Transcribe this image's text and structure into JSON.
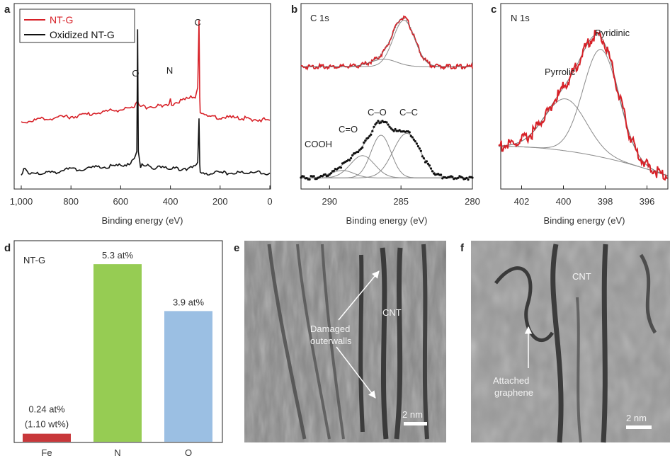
{
  "colors": {
    "red": "#d72027",
    "black": "#111111",
    "green": "#96cc53",
    "blue": "#9bbfe3",
    "fe": "#c8373a"
  },
  "panel_labels": {
    "a": "a",
    "b": "b",
    "c": "c",
    "d": "d",
    "e": "e",
    "f": "f"
  },
  "chart_data": [
    {
      "id": "a",
      "type": "line",
      "xlabel": "Binding energy (eV)",
      "ylabel": "",
      "xlim": [
        1000,
        0
      ],
      "xticks": [
        1000,
        800,
        600,
        400,
        200,
        0
      ],
      "xtick_labels": [
        "1,000",
        "800",
        "600",
        "400",
        "200",
        "0"
      ],
      "legend": [
        "NT-G",
        "Oxidized NT-G"
      ],
      "series": [
        {
          "name": "NT-G",
          "color": "#d72027",
          "x": [
            1000,
            900,
            800,
            700,
            600,
            550,
            535,
            532,
            529,
            520,
            450,
            405,
            400,
            395,
            300,
            290,
            285,
            282,
            280,
            250,
            100,
            0
          ],
          "y": [
            0.36,
            0.38,
            0.39,
            0.41,
            0.43,
            0.44,
            0.47,
            0.48,
            0.46,
            0.44,
            0.45,
            0.46,
            0.49,
            0.46,
            0.5,
            0.55,
            0.92,
            0.5,
            0.4,
            0.39,
            0.38,
            0.37
          ]
        },
        {
          "name": "Oxidized NT-G",
          "color": "#111111",
          "x": [
            1000,
            985,
            970,
            900,
            800,
            700,
            600,
            560,
            545,
            535,
            532,
            529,
            520,
            450,
            400,
            300,
            290,
            285,
            282,
            280,
            250,
            100,
            0
          ],
          "y": [
            0.08,
            0.11,
            0.07,
            0.08,
            0.1,
            0.11,
            0.12,
            0.14,
            0.17,
            0.2,
            0.87,
            0.2,
            0.12,
            0.11,
            0.1,
            0.11,
            0.14,
            0.38,
            0.13,
            0.09,
            0.08,
            0.08,
            0.08
          ]
        }
      ],
      "annotations": [
        {
          "text": "O",
          "x": 540
        },
        {
          "text": "N",
          "x": 403
        },
        {
          "text": "C",
          "x": 290
        }
      ]
    },
    {
      "id": "b",
      "type": "line",
      "title": "C 1s",
      "xlabel": "Binding energy (eV)",
      "xlim": [
        292,
        280
      ],
      "xticks": [
        290,
        285,
        280
      ],
      "xtick_labels": [
        "290",
        "285",
        "280"
      ],
      "top_spectrum": {
        "baseline": 0.66,
        "components": [
          {
            "center": 284.8,
            "amp": 0.25,
            "sigma": 0.75
          },
          {
            "center": 286.2,
            "amp": 0.04,
            "sigma": 0.9
          }
        ]
      },
      "bottom_spectrum": {
        "baseline": 0.06,
        "components": [
          {
            "name": "C-C",
            "center": 284.6,
            "amp": 0.24,
            "sigma": 0.95
          },
          {
            "name": "C-O",
            "center": 286.4,
            "amp": 0.23,
            "sigma": 0.7
          },
          {
            "name": "C=O",
            "center": 287.7,
            "amp": 0.12,
            "sigma": 0.85
          },
          {
            "name": "COOH",
            "center": 289.1,
            "amp": 0.04,
            "sigma": 0.8
          }
        ]
      },
      "annotations": [
        "COOH",
        "C=O",
        "C–O",
        "C–C"
      ]
    },
    {
      "id": "c",
      "type": "line",
      "title": "N 1s",
      "xlabel": "Binding energy (eV)",
      "xlim": [
        403,
        395
      ],
      "xticks": [
        402,
        400,
        398,
        396
      ],
      "xtick_labels": [
        "402",
        "400",
        "398",
        "396"
      ],
      "background": {
        "start": 0.23,
        "end": 0.07
      },
      "components": [
        {
          "name": "Pyrrolic",
          "center": 399.9,
          "amp": 0.28,
          "sigma": 1.0
        },
        {
          "name": "Pyridinic",
          "center": 398.2,
          "amp": 0.58,
          "sigma": 0.85
        }
      ],
      "annotations": [
        "Pyrrolic",
        "Pyridinic"
      ]
    },
    {
      "id": "d",
      "type": "bar",
      "title": "NT-G",
      "categories": [
        "Fe",
        "N",
        "O"
      ],
      "values": [
        0.24,
        5.3,
        3.9
      ],
      "ylim": [
        0,
        6.0
      ],
      "value_labels": [
        "0.24 at%",
        "5.3 at%",
        "3.9 at%"
      ],
      "extra_label": "(1.10 wt%)"
    }
  ],
  "tem_e": {
    "labels": {
      "damaged": "Damaged",
      "outerwalls": "outerwalls",
      "cnt": "CNT",
      "scale": "2 nm"
    }
  },
  "tem_f": {
    "labels": {
      "cnt": "CNT",
      "attached": "Attached",
      "graphene": "graphene",
      "scale": "2 nm"
    }
  }
}
